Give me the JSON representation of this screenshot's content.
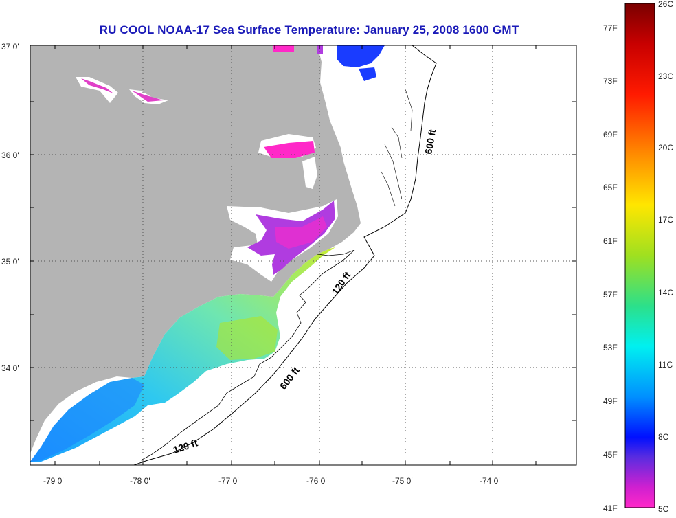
{
  "title": "RU COOL  NOAA-17  Sea Surface Temperature:  January 25, 2008 1600 GMT",
  "map": {
    "lat_labels": [
      "37 0'",
      "36 0'",
      "35 0'",
      "34 0'"
    ],
    "lon_labels": [
      "-79 0'",
      "-78 0'",
      "-77 0'",
      "-76 0'",
      "-75 0'",
      "-74 0'"
    ],
    "contour_labels": [
      "600 ft",
      "120 ft",
      "600 ft",
      "120 ft"
    ]
  },
  "colorbar": {
    "celsius_labels": [
      "26C",
      "23C",
      "20C",
      "17C",
      "14C",
      "11C",
      "8C",
      "5C"
    ],
    "fahrenheit_labels": [
      "77F",
      "73F",
      "69F",
      "65F",
      "61F",
      "57F",
      "53F",
      "49F",
      "45F",
      "41F"
    ]
  },
  "colors": {
    "title": "#1a1ab8",
    "land": "#b4b4b4",
    "ocean": "#ffffff"
  }
}
